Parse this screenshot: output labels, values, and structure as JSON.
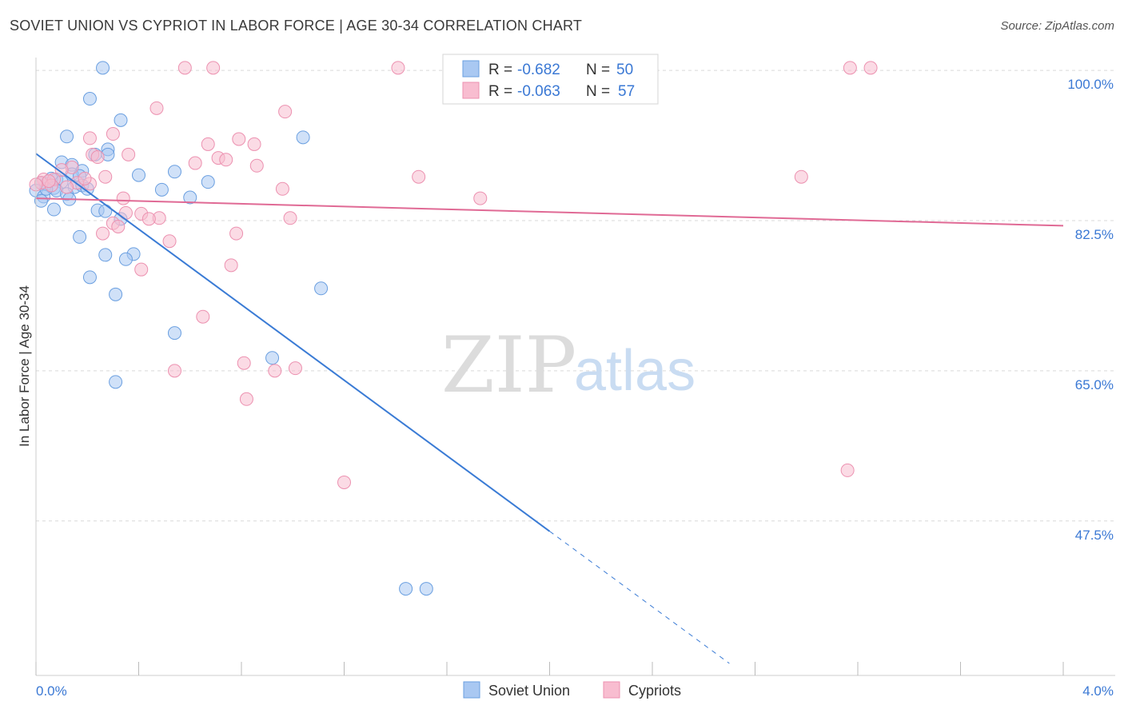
{
  "title": "SOVIET UNION VS CYPRIOT IN LABOR FORCE | AGE 30-34 CORRELATION CHART",
  "source": "Source: ZipAtlas.com",
  "watermark": {
    "zip": "ZIP",
    "atlas": "atlas"
  },
  "colors": {
    "soviet_fill": "#a9c8f2",
    "soviet_stroke": "#6a9fe0",
    "soviet_line": "#3a7bd5",
    "cypriot_fill": "#f8bdd0",
    "cypriot_stroke": "#ec91b0",
    "cypriot_line": "#e06a95",
    "grid": "#d9d9d9",
    "tick_text": "#3a78d4"
  },
  "legend": {
    "rows": [
      {
        "r_label": "R =",
        "r_value": "-0.682",
        "n_label": "N =",
        "n_value": "50"
      },
      {
        "r_label": "R =",
        "r_value": "-0.063",
        "n_label": "N =",
        "n_value": "57"
      }
    ]
  },
  "bottom_legend": [
    "Soviet Union",
    "Cypriots"
  ],
  "chart_data": {
    "type": "scatter",
    "title": "SOVIET UNION VS CYPRIOT IN LABOR FORCE | AGE 30-34 CORRELATION CHART",
    "xlabel": "",
    "ylabel": "In Labor Force | Age 30-34",
    "xlim": [
      0,
      4.0
    ],
    "ylim": [
      29.5,
      101.5
    ],
    "x_tick_labels": [
      "0.0%",
      "4.0%"
    ],
    "y_ticks": [
      47.5,
      65.0,
      82.5,
      100.0
    ],
    "y_tick_labels": [
      "47.5%",
      "65.0%",
      "82.5%",
      "100.0%"
    ],
    "grid": true,
    "legend_position": "top-center",
    "series": [
      {
        "name": "Soviet Union",
        "r": -0.682,
        "n": 50,
        "trend": {
          "x0": 0.0,
          "y0": 90.3,
          "x1": 2.0,
          "y1": 46.3,
          "dashed_to_x": 2.7
        },
        "points": [
          [
            0.26,
            100.3
          ],
          [
            0.21,
            96.7
          ],
          [
            0.33,
            94.2
          ],
          [
            0.12,
            92.3
          ],
          [
            1.04,
            92.2
          ],
          [
            0.28,
            90.8
          ],
          [
            0.23,
            90.2
          ],
          [
            0.28,
            90.2
          ],
          [
            0.1,
            89.3
          ],
          [
            0.14,
            89.0
          ],
          [
            0.18,
            88.3
          ],
          [
            0.4,
            87.8
          ],
          [
            0.54,
            88.2
          ],
          [
            0.14,
            87.9
          ],
          [
            0.17,
            87.7
          ],
          [
            0.08,
            87.3
          ],
          [
            0.06,
            87.4
          ],
          [
            0.1,
            87.0
          ],
          [
            0.04,
            86.8
          ],
          [
            0.02,
            86.9
          ],
          [
            0.07,
            86.3
          ],
          [
            0.15,
            86.4
          ],
          [
            0.18,
            86.6
          ],
          [
            0.2,
            86.2
          ],
          [
            0.0,
            86.0
          ],
          [
            0.08,
            86.0
          ],
          [
            0.12,
            85.6
          ],
          [
            0.49,
            86.1
          ],
          [
            0.67,
            87.0
          ],
          [
            0.03,
            85.3
          ],
          [
            0.02,
            84.8
          ],
          [
            0.13,
            85.0
          ],
          [
            0.6,
            85.2
          ],
          [
            0.07,
            83.8
          ],
          [
            0.24,
            83.7
          ],
          [
            0.27,
            83.6
          ],
          [
            0.33,
            82.7
          ],
          [
            0.17,
            80.6
          ],
          [
            0.27,
            78.5
          ],
          [
            0.38,
            78.6
          ],
          [
            0.35,
            78.0
          ],
          [
            0.21,
            75.9
          ],
          [
            0.31,
            73.9
          ],
          [
            1.11,
            74.6
          ],
          [
            0.54,
            69.4
          ],
          [
            0.92,
            66.5
          ],
          [
            0.31,
            63.7
          ],
          [
            1.44,
            39.6
          ],
          [
            1.52,
            39.6
          ],
          [
            0.04,
            86.2
          ]
        ]
      },
      {
        "name": "Cypriots",
        "r": -0.063,
        "n": 57,
        "trend": {
          "x0": 0.0,
          "y0": 85.1,
          "x1": 4.0,
          "y1": 81.9
        },
        "points": [
          [
            0.58,
            100.3
          ],
          [
            0.69,
            100.3
          ],
          [
            1.41,
            100.3
          ],
          [
            3.17,
            100.3
          ],
          [
            3.25,
            100.3
          ],
          [
            0.47,
            95.6
          ],
          [
            0.97,
            95.2
          ],
          [
            0.3,
            92.6
          ],
          [
            0.21,
            92.1
          ],
          [
            0.79,
            92.0
          ],
          [
            0.85,
            91.4
          ],
          [
            0.67,
            91.4
          ],
          [
            0.36,
            90.2
          ],
          [
            0.22,
            90.2
          ],
          [
            0.24,
            89.9
          ],
          [
            0.71,
            89.8
          ],
          [
            0.74,
            89.6
          ],
          [
            0.62,
            89.2
          ],
          [
            0.86,
            88.9
          ],
          [
            0.14,
            88.7
          ],
          [
            0.1,
            88.4
          ],
          [
            0.27,
            87.6
          ],
          [
            1.49,
            87.6
          ],
          [
            2.98,
            87.6
          ],
          [
            0.03,
            87.3
          ],
          [
            0.07,
            87.3
          ],
          [
            0.02,
            86.9
          ],
          [
            0.0,
            86.7
          ],
          [
            0.06,
            86.6
          ],
          [
            0.16,
            86.9
          ],
          [
            0.21,
            86.8
          ],
          [
            0.12,
            86.4
          ],
          [
            0.96,
            86.2
          ],
          [
            0.34,
            85.1
          ],
          [
            1.73,
            85.1
          ],
          [
            0.35,
            83.4
          ],
          [
            0.41,
            83.3
          ],
          [
            0.48,
            82.8
          ],
          [
            0.44,
            82.7
          ],
          [
            0.99,
            82.8
          ],
          [
            0.3,
            82.2
          ],
          [
            0.32,
            81.8
          ],
          [
            0.26,
            81.0
          ],
          [
            0.78,
            81.0
          ],
          [
            0.52,
            80.1
          ],
          [
            0.76,
            77.3
          ],
          [
            0.41,
            76.8
          ],
          [
            0.65,
            71.3
          ],
          [
            0.54,
            65.0
          ],
          [
            0.81,
            65.9
          ],
          [
            0.93,
            65.0
          ],
          [
            1.01,
            65.3
          ],
          [
            0.82,
            61.7
          ],
          [
            1.2,
            52.0
          ],
          [
            3.16,
            53.4
          ],
          [
            0.05,
            87.1
          ],
          [
            0.19,
            87.4
          ]
        ]
      }
    ]
  }
}
